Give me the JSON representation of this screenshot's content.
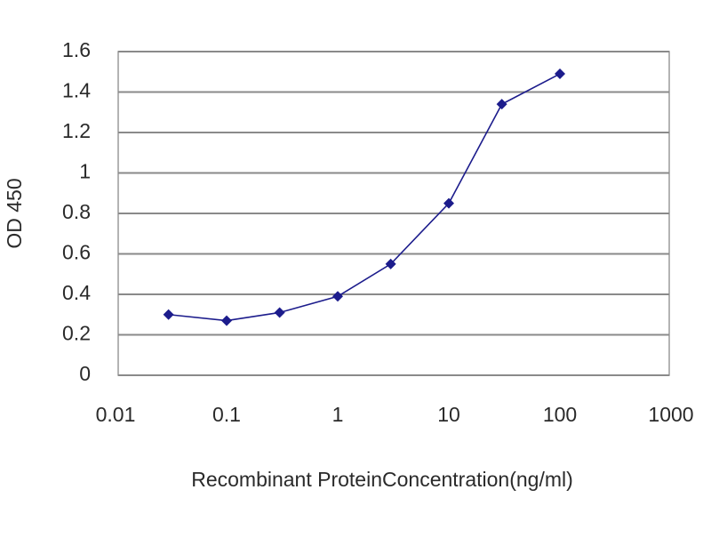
{
  "chart_data": {
    "type": "line",
    "x_label": "Recombinant ProteinConcentration(ng/ml)",
    "y_label": "OD 450",
    "x": [
      0.03,
      0.1,
      0.3,
      1,
      3,
      10,
      30,
      100
    ],
    "values": [
      0.3,
      0.27,
      0.31,
      0.39,
      0.55,
      0.85,
      1.34,
      1.49
    ],
    "color": "#1c1c8c",
    "x_scale": "log",
    "xlim": [
      0.01,
      1000
    ],
    "xticks": [
      0.01,
      0.1,
      1,
      10,
      100,
      1000
    ],
    "ylim": [
      0,
      1.6
    ],
    "yticks": [
      0,
      0.2,
      0.4,
      0.6,
      0.8,
      1,
      1.2,
      1.4,
      1.6
    ],
    "grid": true
  }
}
